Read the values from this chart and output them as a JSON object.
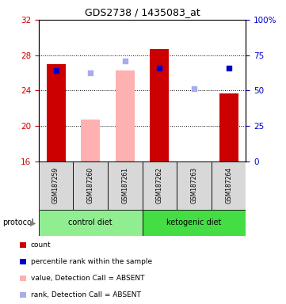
{
  "title": "GDS2738 / 1435083_at",
  "samples": [
    "GSM187259",
    "GSM187260",
    "GSM187261",
    "GSM187262",
    "GSM187263",
    "GSM187264"
  ],
  "ylim_left": [
    16,
    32
  ],
  "ylim_right": [
    0,
    100
  ],
  "yticks_left": [
    16,
    20,
    24,
    28,
    32
  ],
  "yticks_right": [
    0,
    25,
    50,
    75,
    100
  ],
  "ytick_labels_right": [
    "0",
    "25",
    "50",
    "75",
    "100%"
  ],
  "bar_bottoms": 16,
  "bar_tops_present": [
    27.0,
    0,
    0,
    28.7,
    0,
    23.7
  ],
  "bar_tops_absent": [
    0,
    20.7,
    26.3,
    0,
    0,
    0
  ],
  "bar_color_present": "#cc0000",
  "bar_color_absent": "#ffb0b0",
  "bar_width": 0.55,
  "blue_y_present": [
    26.3,
    0,
    0,
    26.5,
    0,
    26.5
  ],
  "blue_y_absent": [
    0,
    26.0,
    27.3,
    0,
    24.2,
    0
  ],
  "blue_dot_color_present": "#0000cc",
  "blue_dot_color_absent": "#aaaaee",
  "blue_dot_size": 22,
  "groups": [
    {
      "label": "control diet",
      "samples": [
        0,
        1,
        2
      ],
      "color": "#90ee90"
    },
    {
      "label": "ketogenic diet",
      "samples": [
        3,
        4,
        5
      ],
      "color": "#44dd44"
    }
  ],
  "protocol_label": "protocol",
  "legend_items": [
    {
      "label": "count",
      "color": "#cc0000"
    },
    {
      "label": "percentile rank within the sample",
      "color": "#0000cc"
    },
    {
      "label": "value, Detection Call = ABSENT",
      "color": "#ffb0b0"
    },
    {
      "label": "rank, Detection Call = ABSENT",
      "color": "#aaaaee"
    }
  ],
  "bg_color": "#ffffff",
  "tick_label_color_left": "#cc0000",
  "tick_label_color_right": "#0000cc",
  "grid_yticks": [
    20,
    24,
    28
  ]
}
